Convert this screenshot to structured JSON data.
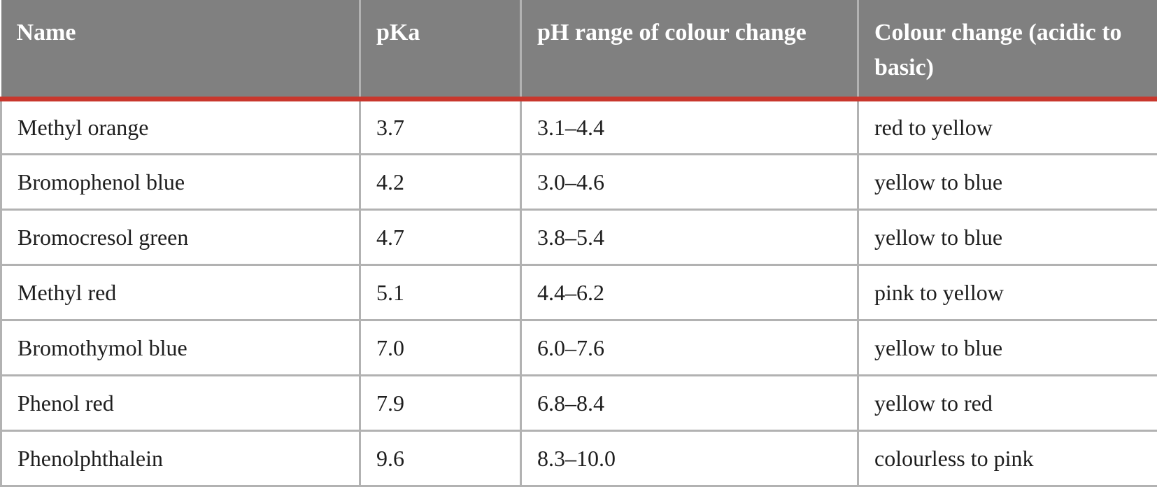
{
  "columns": [
    "Name",
    "pKa",
    "pH range of colour change",
    "Colour change (acidic to basic)"
  ],
  "rows": [
    [
      "Methyl orange",
      "3.7",
      "3.1–4.4",
      "red to yellow"
    ],
    [
      "Bromophenol blue",
      "4.2",
      "3.0–4.6",
      "yellow to blue"
    ],
    [
      "Bromocresol green",
      "4.7",
      "3.8–5.4",
      "yellow to blue"
    ],
    [
      "Methyl red",
      "5.1",
      "4.4–6.2",
      "pink to yellow"
    ],
    [
      "Bromothymol blue",
      "7.0",
      "6.0–7.6",
      "yellow to blue"
    ],
    [
      "Phenol red",
      "7.9",
      "6.8–8.4",
      "yellow to red"
    ],
    [
      "Phenolphthalein",
      "9.6",
      "8.3–10.0",
      "colourless to pink"
    ]
  ],
  "colors": {
    "header_background": "#808080",
    "header_text": "#ffffff",
    "header_rule": "#c8372d",
    "grid_lines": "#b2b2b2",
    "body_text": "#1e1e1e"
  }
}
